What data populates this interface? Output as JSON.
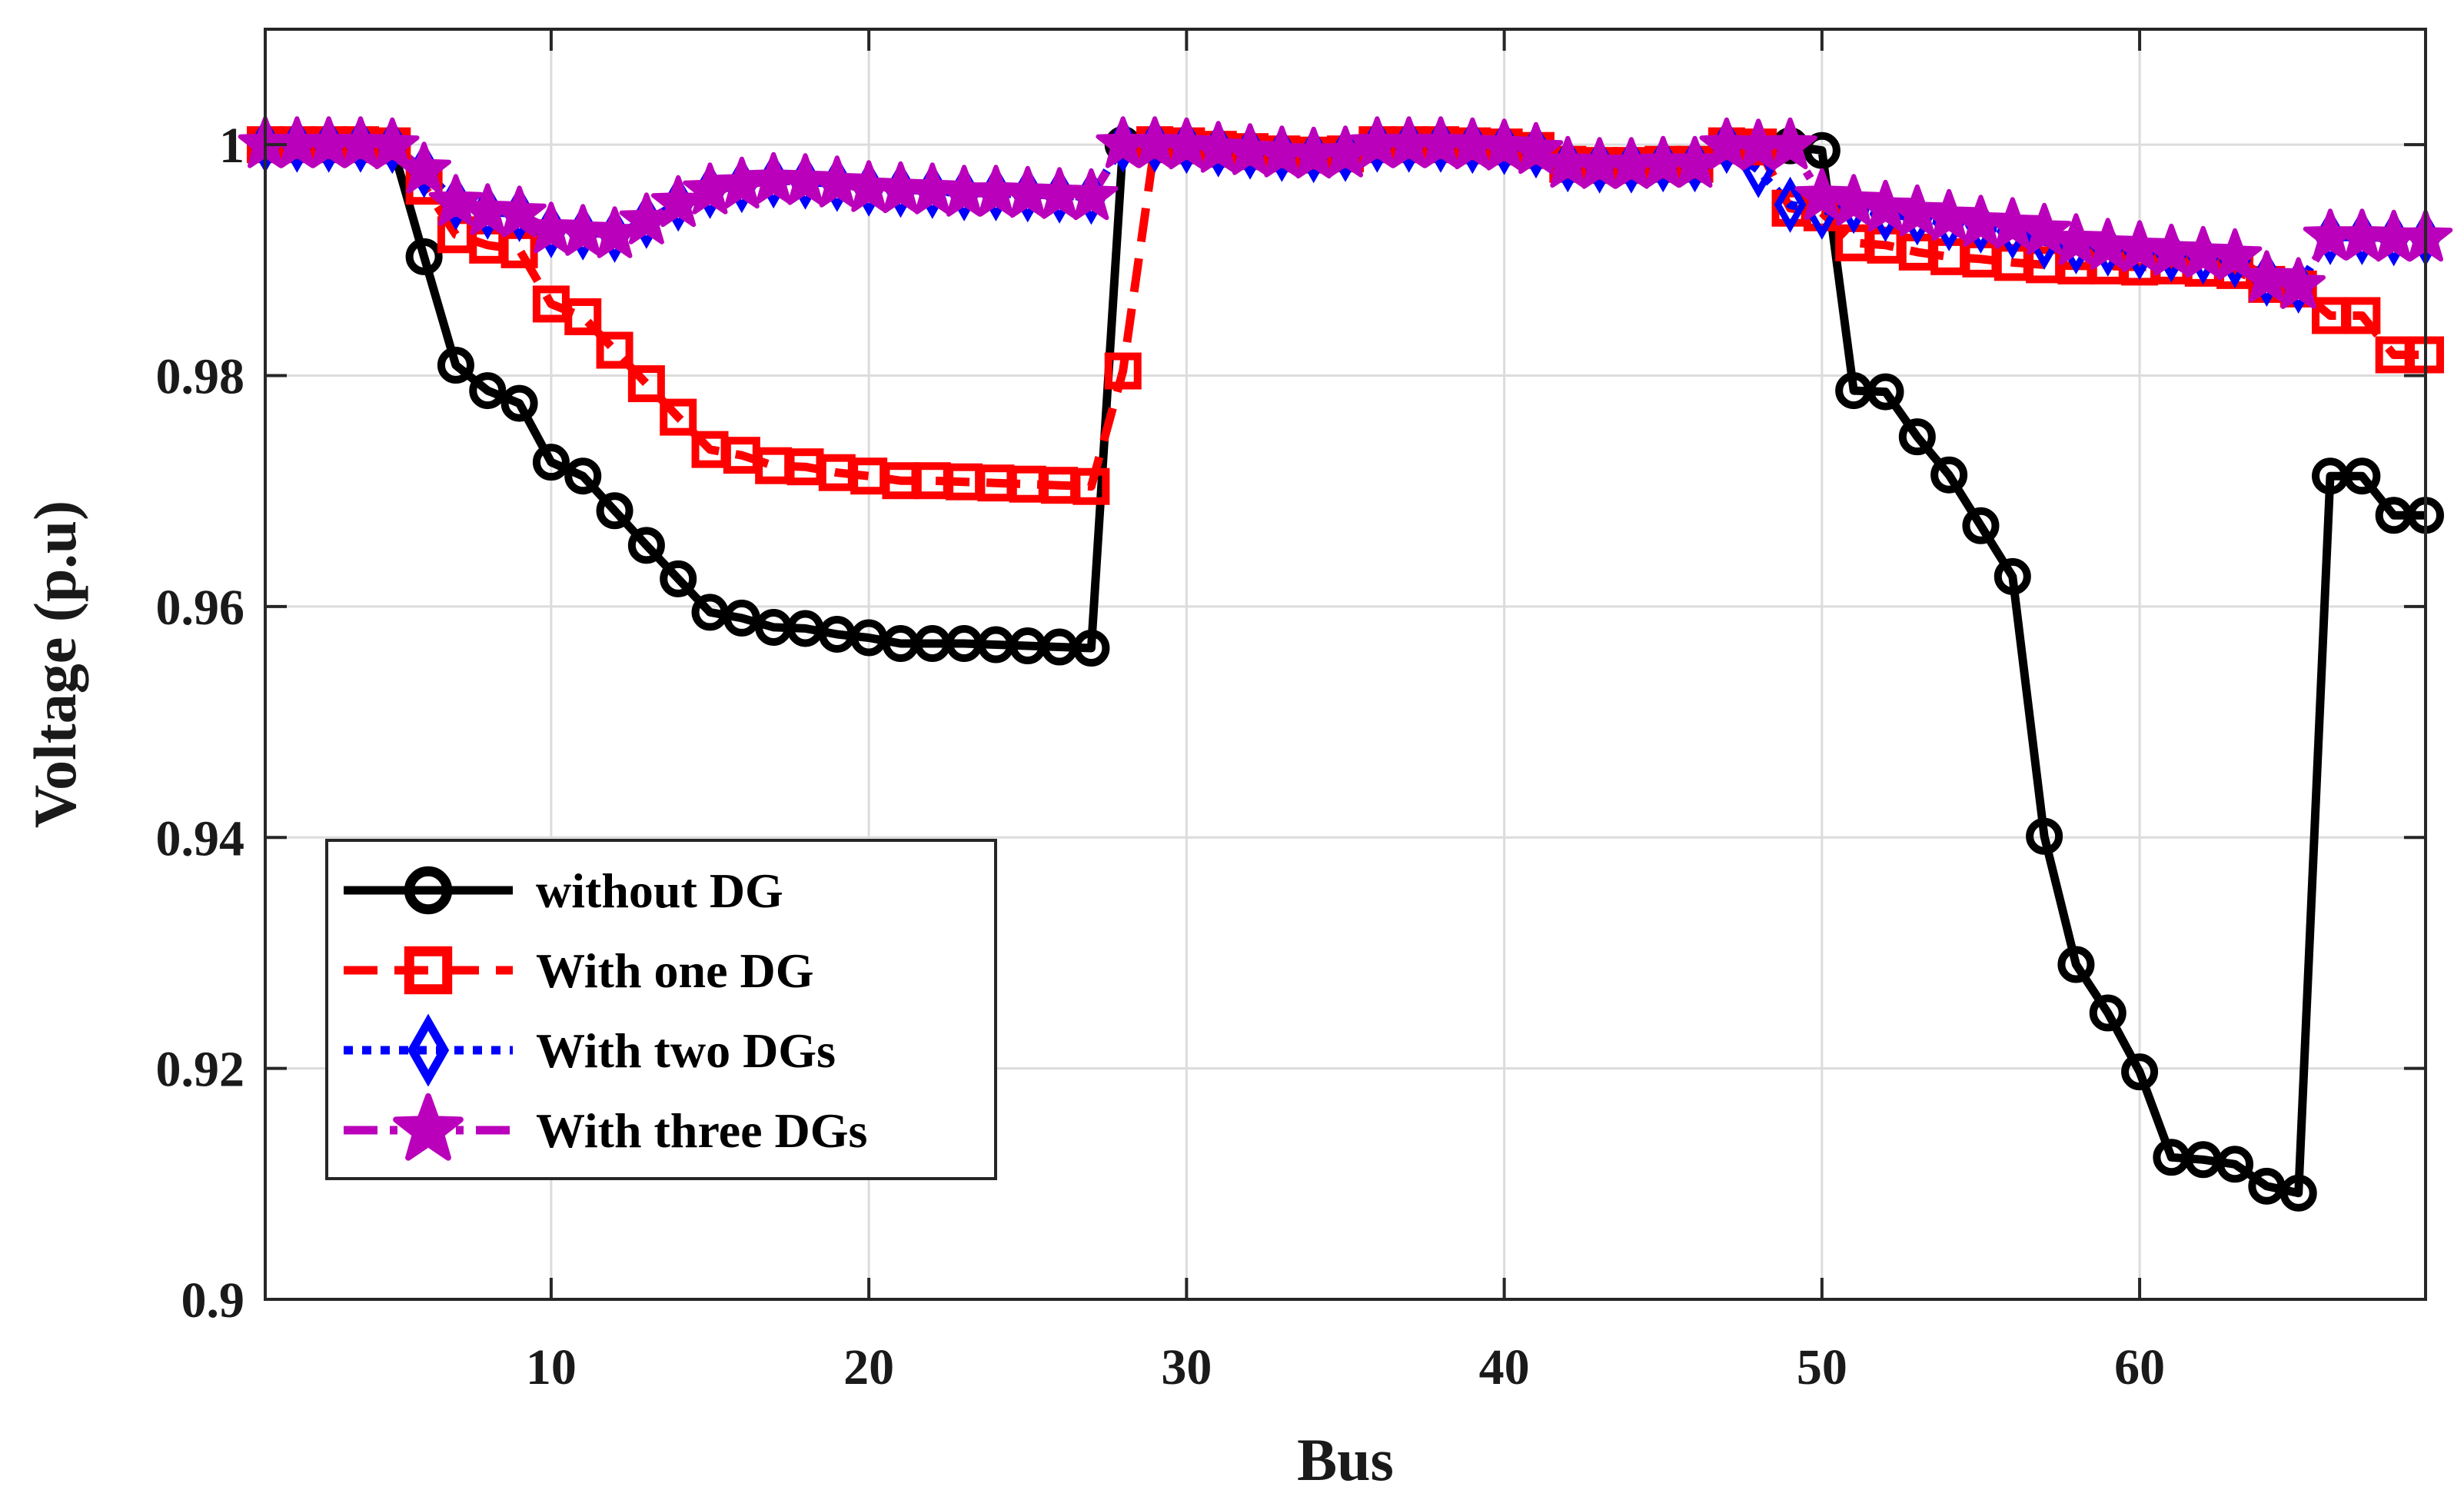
{
  "chart_data": {
    "type": "line",
    "title": "",
    "xlabel": "Bus",
    "ylabel": "Voltage (p.u)",
    "xlim": [
      1,
      69
    ],
    "ylim": [
      0.9,
      1.01
    ],
    "grid": true,
    "legend_position": "bottom-left",
    "xticks": [
      10,
      20,
      30,
      40,
      50,
      60
    ],
    "yticks": [
      0.9,
      0.92,
      0.94,
      0.96,
      0.98,
      1
    ],
    "xtick_labels": [
      "10",
      "20",
      "30",
      "40",
      "50",
      "60"
    ],
    "ytick_labels": [
      "0.9",
      "0.92",
      "0.94",
      "0.96",
      "0.98",
      "1"
    ],
    "x": [
      1,
      2,
      3,
      4,
      5,
      6,
      7,
      8,
      9,
      10,
      11,
      12,
      13,
      14,
      15,
      16,
      17,
      18,
      19,
      20,
      21,
      22,
      23,
      24,
      25,
      26,
      27,
      28,
      29,
      30,
      31,
      32,
      33,
      34,
      35,
      36,
      37,
      38,
      39,
      40,
      41,
      42,
      43,
      44,
      45,
      46,
      47,
      48,
      49,
      50,
      51,
      52,
      53,
      54,
      55,
      56,
      57,
      58,
      59,
      60,
      61,
      62,
      63,
      64,
      65,
      66,
      67,
      68,
      69
    ],
    "series": [
      {
        "name": "without DG",
        "color": "#000000",
        "dash": "solid",
        "marker": "circle",
        "values": [
          1.0,
          1.0,
          1.0,
          1.0,
          0.9999,
          0.9903,
          0.9809,
          0.9787,
          0.9776,
          0.9725,
          0.9713,
          0.9683,
          0.9653,
          0.9624,
          0.9595,
          0.959,
          0.9582,
          0.9581,
          0.9576,
          0.9573,
          0.9568,
          0.9568,
          0.9568,
          0.9567,
          0.9566,
          0.9565,
          0.9564,
          1.0,
          1.0,
          0.9999,
          0.9996,
          0.9994,
          0.9992,
          0.9991,
          0.9992,
          1.0,
          1.0,
          1.0,
          0.9999,
          0.9998,
          0.9995,
          0.9983,
          0.9982,
          0.9982,
          0.9983,
          0.9983,
          0.9999,
          0.9998,
          0.9999,
          0.9995,
          0.9787,
          0.9786,
          0.9747,
          0.9714,
          0.967,
          0.9626,
          0.9401,
          0.929,
          0.9248,
          0.9197,
          0.9123,
          0.9121,
          0.9117,
          0.9098,
          0.9092,
          0.9713,
          0.9713,
          0.9679,
          0.9679
        ]
      },
      {
        "name": "With one DG",
        "color": "#ff0000",
        "dash": "dashed",
        "marker": "square",
        "values": [
          1.0,
          1.0,
          1.0,
          1.0,
          0.9999,
          0.9964,
          0.9922,
          0.9913,
          0.9909,
          0.9862,
          0.9851,
          0.9822,
          0.9793,
          0.9764,
          0.9736,
          0.9731,
          0.9722,
          0.9721,
          0.9716,
          0.9713,
          0.9709,
          0.9709,
          0.9708,
          0.9707,
          0.9706,
          0.9705,
          0.9704,
          0.9804,
          1.0,
          0.9999,
          0.9996,
          0.9994,
          0.9992,
          0.9991,
          0.9992,
          1.0,
          1.0,
          1.0,
          0.9999,
          0.9998,
          0.9995,
          0.9983,
          0.9982,
          0.9982,
          0.9983,
          0.9983,
          0.9999,
          0.9998,
          0.9945,
          0.9941,
          0.9915,
          0.9913,
          0.9907,
          0.9903,
          0.9901,
          0.9898,
          0.9896,
          0.9895,
          0.9895,
          0.9894,
          0.9895,
          0.9893,
          0.9891,
          0.9879,
          0.9875,
          0.9852,
          0.9852,
          0.9818,
          0.9818
        ]
      },
      {
        "name": "With two DGs",
        "color": "#0000ff",
        "dash": "dotted",
        "marker": "diamond",
        "values": [
          1.0,
          1.0,
          1.0,
          1.0,
          0.9999,
          0.9978,
          0.995,
          0.9942,
          0.994,
          0.9926,
          0.9924,
          0.9922,
          0.9934,
          0.9949,
          0.996,
          0.9965,
          0.9969,
          0.9968,
          0.9966,
          0.9962,
          0.9961,
          0.996,
          0.9958,
          0.9958,
          0.9957,
          0.9956,
          0.9955,
          1.0,
          1.0,
          0.9999,
          0.9996,
          0.9994,
          0.9992,
          0.9991,
          0.9992,
          1.0,
          1.0,
          1.0,
          0.9999,
          0.9998,
          0.9995,
          0.9983,
          0.9982,
          0.9982,
          0.9983,
          0.9983,
          0.9999,
          0.9978,
          0.9948,
          0.9942,
          0.9947,
          0.994,
          0.9937,
          0.9932,
          0.993,
          0.9925,
          0.9916,
          0.9912,
          0.991,
          0.9907,
          0.9905,
          0.9903,
          0.99,
          0.9884,
          0.9878,
          0.992,
          0.992,
          0.9919,
          0.9919
        ]
      },
      {
        "name": "With three DGs",
        "color": "#bb00bb",
        "dash": "dashdot",
        "marker": "star",
        "values": [
          1.0,
          1.0,
          1.0,
          1.0,
          0.9999,
          0.9978,
          0.995,
          0.9942,
          0.994,
          0.9926,
          0.9924,
          0.9922,
          0.9934,
          0.9949,
          0.996,
          0.9965,
          0.9969,
          0.9968,
          0.9966,
          0.9962,
          0.9961,
          0.996,
          0.9958,
          0.9958,
          0.9957,
          0.9956,
          0.9955,
          1.0,
          1.0,
          0.9999,
          0.9996,
          0.9994,
          0.9992,
          0.9991,
          0.9992,
          1.0,
          1.0,
          1.0,
          0.9999,
          0.9998,
          0.9995,
          0.9983,
          0.9982,
          0.9982,
          0.9983,
          0.9983,
          0.9999,
          0.9998,
          0.9999,
          0.9955,
          0.995,
          0.9945,
          0.9941,
          0.9937,
          0.9932,
          0.993,
          0.9925,
          0.9916,
          0.9912,
          0.991,
          0.9907,
          0.9905,
          0.9903,
          0.9884,
          0.9878,
          0.992,
          0.992,
          0.9919,
          0.9919
        ]
      }
    ]
  }
}
